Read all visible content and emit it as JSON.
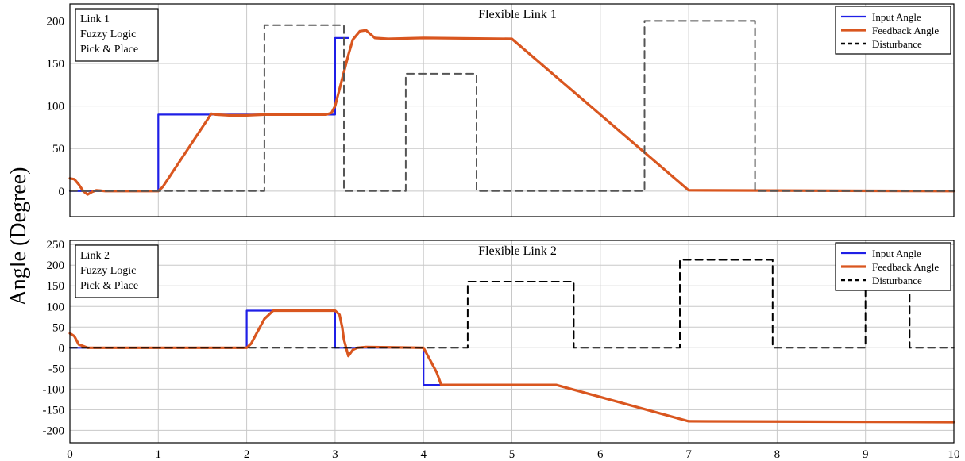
{
  "figure": {
    "ylabel": "Angle (Degree)"
  },
  "colors": {
    "input": "#1f1fe6",
    "feedback": "#d9561f",
    "disturbance_top": "#555555",
    "disturbance_bottom": "#000000",
    "grid": "#c8c8c8",
    "frame": "#000000"
  },
  "legend_labels": [
    "Input Angle",
    "Feedback Angle",
    "Disturbance"
  ],
  "chart_data": [
    {
      "type": "line",
      "title": "Flexible Link 1",
      "xlabel": "",
      "ylabel": "Angle (Degree)",
      "xlim": [
        0,
        10
      ],
      "ylim": [
        -30,
        220
      ],
      "xticks": [
        0,
        1,
        2,
        3,
        4,
        5,
        6,
        7,
        8,
        9,
        10
      ],
      "yticks": [
        0,
        50,
        100,
        150,
        200
      ],
      "grid": true,
      "legend": "top-right",
      "annotation": [
        "Link 1",
        "Fuzzy Logic",
        "Pick & Place"
      ],
      "series": [
        {
          "name": "Input Angle",
          "x": [
            0,
            1,
            1,
            3,
            3,
            3.15
          ],
          "y": [
            0,
            0,
            90,
            90,
            180,
            180
          ]
        },
        {
          "name": "Feedback Angle",
          "x": [
            0,
            0.05,
            0.1,
            0.15,
            0.2,
            0.25,
            0.3,
            0.4,
            1.0,
            1.05,
            1.6,
            1.65,
            1.8,
            2.0,
            2.2,
            2.9,
            2.96,
            3.0,
            3.05,
            3.1,
            3.15,
            3.2,
            3.28,
            3.35,
            3.45,
            3.6,
            4.0,
            5.0,
            7.0,
            10.0
          ],
          "y": [
            15,
            14,
            8,
            0,
            -4,
            -1,
            1,
            0,
            0,
            5,
            91,
            90,
            89,
            89,
            90,
            90,
            92,
            100,
            120,
            140,
            160,
            178,
            188,
            189,
            180,
            179,
            180,
            179,
            1,
            0
          ]
        },
        {
          "name": "Disturbance",
          "x": [
            0,
            2.2,
            2.2,
            3.1,
            3.1,
            3.8,
            3.8,
            4.6,
            4.6,
            6.5,
            6.5,
            7.75,
            7.75,
            10
          ],
          "y": [
            0,
            0,
            195,
            195,
            0,
            0,
            138,
            138,
            0,
            0,
            200,
            200,
            0,
            0
          ]
        }
      ]
    },
    {
      "type": "line",
      "title": "Flexible Link 2",
      "xlabel": "",
      "ylabel": "Angle (Degree)",
      "xlim": [
        0,
        10
      ],
      "ylim": [
        -230,
        260
      ],
      "xticks": [
        0,
        1,
        2,
        3,
        4,
        5,
        6,
        7,
        8,
        9,
        10
      ],
      "yticks": [
        250,
        200,
        150,
        100,
        50,
        0,
        -50,
        -100,
        -150,
        -200
      ],
      "grid": true,
      "legend": "top-right",
      "annotation": [
        "Link 2",
        "Fuzzy Logic",
        "Pick & Place"
      ],
      "series": [
        {
          "name": "Input Angle",
          "x": [
            0,
            2,
            2,
            3,
            3,
            4,
            4,
            4.2
          ],
          "y": [
            0,
            0,
            90,
            90,
            0,
            0,
            -90,
            -90
          ]
        },
        {
          "name": "Feedback Angle",
          "x": [
            0,
            0.05,
            0.1,
            0.2,
            1.0,
            2.0,
            2.05,
            2.1,
            2.2,
            2.3,
            3.0,
            3.05,
            3.08,
            3.1,
            3.15,
            3.2,
            3.25,
            3.35,
            4.0,
            4.05,
            4.15,
            4.2,
            5.0,
            5.5,
            7.0,
            10.0
          ],
          "y": [
            35,
            28,
            8,
            0,
            0,
            0,
            10,
            30,
            70,
            90,
            90,
            80,
            50,
            20,
            -20,
            -5,
            0,
            2,
            0,
            -20,
            -60,
            -90,
            -90,
            -90,
            -178,
            -180
          ]
        },
        {
          "name": "Disturbance",
          "x": [
            0,
            4.5,
            4.5,
            5.7,
            5.7,
            6.9,
            6.9,
            7.95,
            7.95,
            9.0,
            9.0,
            9.5,
            9.5,
            10
          ],
          "y": [
            0,
            0,
            160,
            160,
            0,
            0,
            213,
            213,
            0,
            0,
            160,
            160,
            0,
            0
          ]
        }
      ]
    }
  ]
}
